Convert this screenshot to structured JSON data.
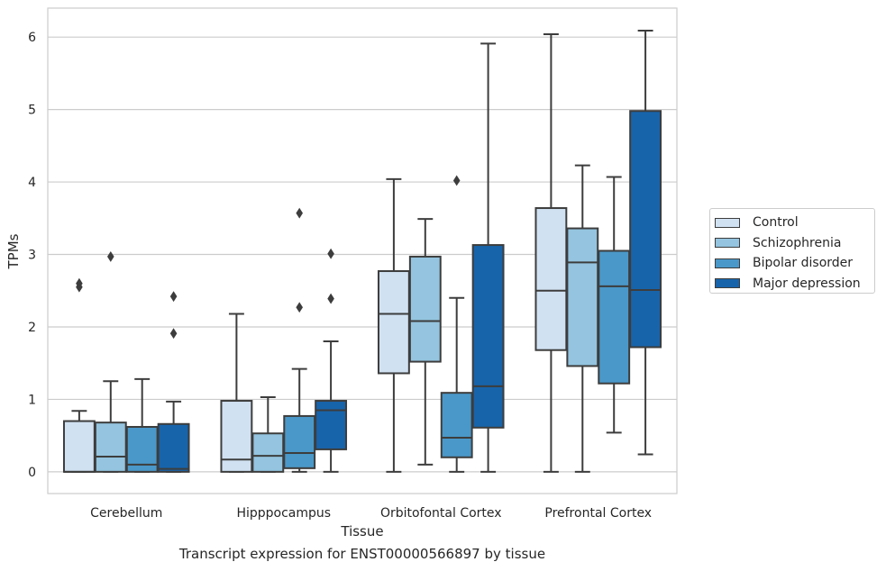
{
  "chart_data": {
    "type": "box",
    "xlabel": "Tissue",
    "ylabel": "TPMs",
    "caption": "Transcript expression for ENST00000566897 by tissue",
    "ylim": [
      -0.3,
      6.4
    ],
    "yticks": [
      0,
      1,
      2,
      3,
      4,
      5,
      6
    ],
    "categories": [
      "Cerebellum",
      "Hipppocampus",
      "Orbitofontal Cortex",
      "Prefrontal Cortex"
    ],
    "legend_position": "right",
    "grid": "horizontal",
    "series": [
      {
        "name": "Control",
        "color": "#d0e1f2",
        "boxes": [
          {
            "min": 0,
            "q1": 0,
            "median": 0,
            "q3": 0.7,
            "max": 0.84,
            "outliers": [
              2.55,
              2.6
            ]
          },
          {
            "min": 0,
            "q1": 0,
            "median": 0.17,
            "q3": 0.98,
            "max": 2.18,
            "outliers": []
          },
          {
            "min": 0,
            "q1": 1.36,
            "median": 2.18,
            "q3": 2.77,
            "max": 4.04,
            "outliers": []
          },
          {
            "min": 0,
            "q1": 1.68,
            "median": 2.5,
            "q3": 3.64,
            "max": 6.04,
            "outliers": []
          }
        ]
      },
      {
        "name": "Schizophrenia",
        "color": "#94c4df",
        "boxes": [
          {
            "min": 0,
            "q1": 0,
            "median": 0.21,
            "q3": 0.68,
            "max": 1.25,
            "outliers": [
              2.97
            ]
          },
          {
            "min": 0,
            "q1": 0,
            "median": 0.22,
            "q3": 0.53,
            "max": 1.03,
            "outliers": []
          },
          {
            "min": 0.1,
            "q1": 1.52,
            "median": 2.08,
            "q3": 2.97,
            "max": 3.49,
            "outliers": []
          },
          {
            "min": 0,
            "q1": 1.46,
            "median": 2.89,
            "q3": 3.36,
            "max": 4.23,
            "outliers": []
          }
        ]
      },
      {
        "name": "Bipolar disorder",
        "color": "#4a98c9",
        "boxes": [
          {
            "min": 0,
            "q1": 0,
            "median": 0.1,
            "q3": 0.62,
            "max": 1.28,
            "outliers": []
          },
          {
            "min": 0,
            "q1": 0.05,
            "median": 0.26,
            "q3": 0.77,
            "max": 1.42,
            "outliers": [
              2.27,
              3.57
            ]
          },
          {
            "min": 0,
            "q1": 0.2,
            "median": 0.47,
            "q3": 1.09,
            "max": 2.4,
            "outliers": [
              4.02
            ]
          },
          {
            "min": 0.54,
            "q1": 1.22,
            "median": 2.56,
            "q3": 3.05,
            "max": 4.07,
            "outliers": []
          }
        ]
      },
      {
        "name": "Major depression",
        "color": "#1764ab",
        "boxes": [
          {
            "min": 0,
            "q1": 0,
            "median": 0.04,
            "q3": 0.66,
            "max": 0.97,
            "outliers": [
              1.91,
              2.42
            ]
          },
          {
            "min": 0,
            "q1": 0.31,
            "median": 0.85,
            "q3": 0.98,
            "max": 1.8,
            "outliers": [
              2.39,
              3.01
            ]
          },
          {
            "min": 0,
            "q1": 0.61,
            "median": 1.18,
            "q3": 3.13,
            "max": 5.91,
            "outliers": []
          },
          {
            "min": 0.24,
            "q1": 1.72,
            "median": 2.51,
            "q3": 4.98,
            "max": 6.09,
            "outliers": []
          }
        ]
      }
    ]
  }
}
